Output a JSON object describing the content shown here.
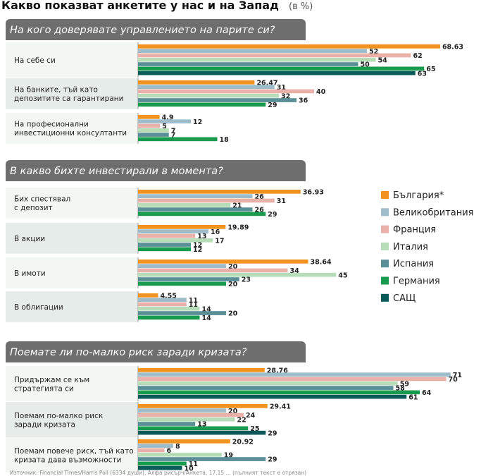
{
  "header": {
    "title": "Какво показват анкетите у нас и на Запад",
    "unit": "(в %)"
  },
  "legend": [
    {
      "name": "България*",
      "color": "#f29320"
    },
    {
      "name": "Великобритания",
      "color": "#9fbcca"
    },
    {
      "name": "Франция",
      "color": "#e9b1a9"
    },
    {
      "name": "Италия",
      "color": "#b7dcb8"
    },
    {
      "name": "Испания",
      "color": "#5b8f97"
    },
    {
      "name": "Германия",
      "color": "#189a4f"
    },
    {
      "name": "САЩ",
      "color": "#0b5a5a"
    }
  ],
  "source_text": "Източник: Financial Times/Harris Poll (6334 души), Алфа рисърч/Анкета, 17.15 ... (пълният текст е отрязан)",
  "chart_data": [
    {
      "type": "bar",
      "orientation": "horizontal",
      "title": "На кого доверявате управлението на парите си?",
      "series_names": [
        "България*",
        "Великобритания",
        "Франция",
        "Италия",
        "Испания",
        "Германия",
        "САЩ"
      ],
      "groups": [
        {
          "label": [
            "На себе си"
          ],
          "values": [
            68.63,
            52,
            62,
            54,
            50,
            65,
            63
          ],
          "labels": [
            "68.63",
            "52",
            "62",
            "54",
            "50",
            "65",
            "63"
          ]
        },
        {
          "label": [
            "На банките, тъй като",
            "депозитите са гарантирани"
          ],
          "values": [
            26.47,
            31,
            40,
            32,
            36,
            29
          ],
          "labels": [
            "26.47",
            "31",
            "40",
            "32",
            "36",
            "29"
          ],
          "series_index": [
            0,
            1,
            2,
            3,
            4,
            5
          ]
        },
        {
          "label": [
            "На професионални",
            "инвестиционни консултанти"
          ],
          "values": [
            4.9,
            12,
            5,
            7,
            7,
            18
          ],
          "labels": [
            "4.9",
            "12",
            "5",
            "7",
            "7",
            "18"
          ],
          "series_index": [
            0,
            1,
            2,
            3,
            4,
            5
          ]
        }
      ]
    },
    {
      "type": "bar",
      "orientation": "horizontal",
      "title": "В какво бихте инвестирали в момента?",
      "series_names": [
        "България*",
        "Великобритания",
        "Франция",
        "Италия",
        "Испания",
        "Германия",
        "САЩ"
      ],
      "groups": [
        {
          "label": [
            "Бих спестявал",
            "с депозит"
          ],
          "values": [
            36.93,
            26,
            31,
            21,
            26,
            29
          ],
          "labels": [
            "36.93",
            "26",
            "31",
            "21",
            "26",
            "29"
          ],
          "series_index": [
            0,
            1,
            2,
            3,
            4,
            5
          ]
        },
        {
          "label": [
            "В акции"
          ],
          "values": [
            19.89,
            16,
            13,
            17,
            12,
            12
          ],
          "labels": [
            "19.89",
            "16",
            "13",
            "17",
            "12",
            "12"
          ],
          "series_index": [
            0,
            1,
            2,
            3,
            4,
            5
          ]
        },
        {
          "label": [
            "В имоти"
          ],
          "values": [
            38.64,
            20,
            34,
            45,
            23,
            20
          ],
          "labels": [
            "38.64",
            "20",
            "34",
            "45",
            "23",
            "20"
          ],
          "series_index": [
            0,
            1,
            2,
            3,
            4,
            5
          ]
        },
        {
          "label": [
            "В облигации"
          ],
          "values": [
            4.55,
            11,
            11,
            14,
            20,
            14
          ],
          "labels": [
            "4.55",
            "11",
            "11",
            "14",
            "20",
            "14"
          ],
          "series_index": [
            0,
            1,
            2,
            3,
            4,
            5
          ]
        }
      ]
    },
    {
      "type": "bar",
      "orientation": "horizontal",
      "title": "Поемате ли по-малко риск заради кризата?",
      "series_names": [
        "България*",
        "Великобритания",
        "Франция",
        "Италия",
        "Испания",
        "Германия",
        "САЩ"
      ],
      "groups": [
        {
          "label": [
            "Придържам се към",
            "стратегията си"
          ],
          "values": [
            28.76,
            71,
            70,
            59,
            58,
            64,
            61
          ],
          "labels": [
            "28.76",
            "71",
            "70",
            "59",
            "58",
            "64",
            "61"
          ]
        },
        {
          "label": [
            "Поемам по-малко риск",
            "заради кризата"
          ],
          "values": [
            29.41,
            20,
            24,
            22,
            13,
            25,
            29
          ],
          "labels": [
            "29.41",
            "20",
            "24",
            "22",
            "13",
            "25",
            "29"
          ]
        },
        {
          "label": [
            "Поемам повече риск, тъй като",
            "кризата дава възможности"
          ],
          "values": [
            20.92,
            8,
            6,
            19,
            29,
            11,
            10
          ],
          "labels": [
            "20.92",
            "8",
            "6",
            "19",
            "29",
            "11",
            "10"
          ]
        }
      ]
    }
  ]
}
